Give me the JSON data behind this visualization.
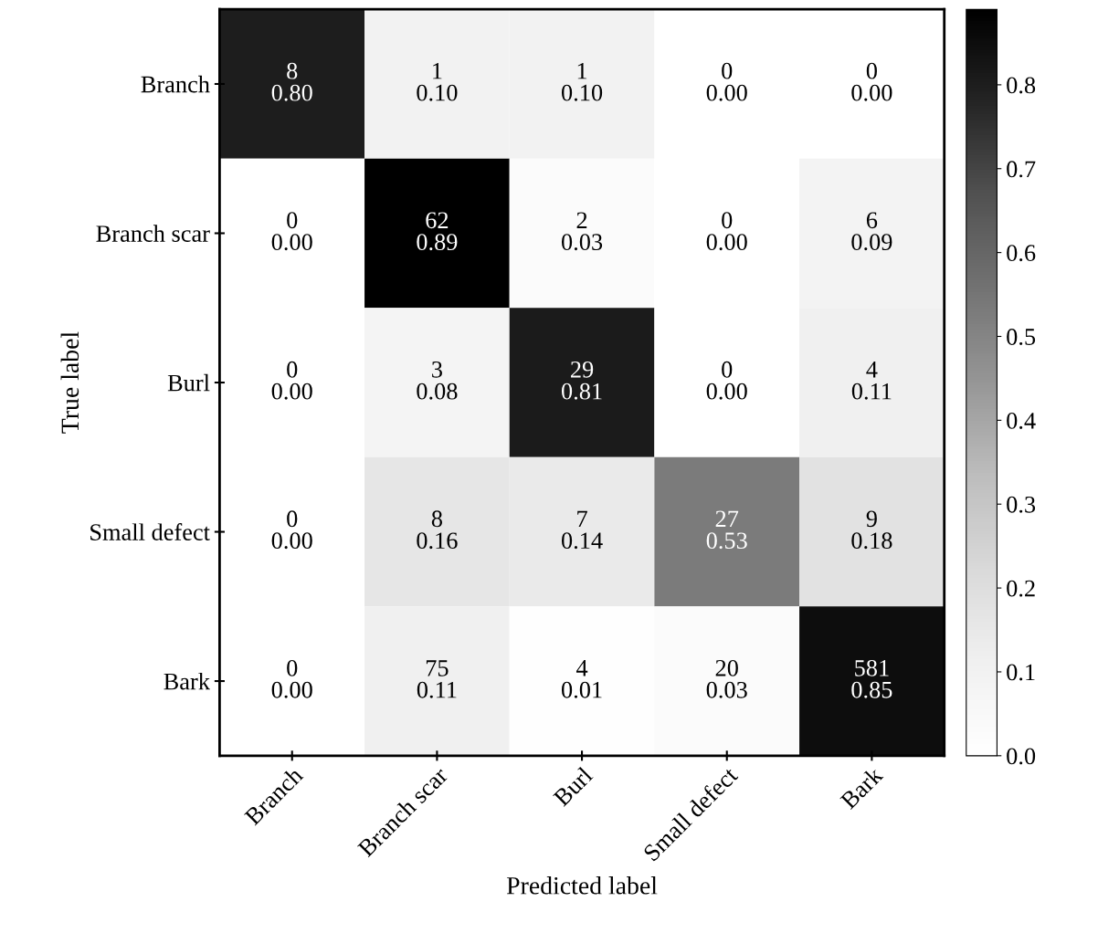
{
  "chart_data": {
    "type": "heatmap",
    "xlabel": "Predicted label",
    "ylabel": "True label",
    "categories": [
      "Branch",
      "Branch scar",
      "Burl",
      "Small defect",
      "Bark"
    ],
    "y_categories": [
      "Branch",
      "Branch scar",
      "Burl",
      "Small defect",
      "Bark"
    ],
    "cells": [
      [
        0.8,
        0.1,
        0.1,
        0.0,
        0.0
      ],
      [
        0.0,
        0.89,
        0.03,
        0.0,
        0.09
      ],
      [
        0.0,
        0.08,
        0.81,
        0.0,
        0.11
      ],
      [
        0.0,
        0.16,
        0.14,
        0.53,
        0.18
      ],
      [
        0.0,
        0.11,
        0.01,
        0.03,
        0.85
      ]
    ],
    "cell_labels": [
      [
        "8\n0.80",
        "1\n0.10",
        "1\n0.10",
        "0\n0.00",
        "0\n0.00"
      ],
      [
        "0\n0.00",
        "62\n0.89",
        "2\n0.03",
        "0\n0.00",
        "6\n0.09"
      ],
      [
        "0\n0.00",
        "3\n0.08",
        "29\n0.81",
        "0\n0.00",
        "4\n0.11"
      ],
      [
        "0\n0.00",
        "8\n0.16",
        "7\n0.14",
        "27\n0.53",
        "9\n0.18"
      ],
      [
        "0\n0.00",
        "75\n0.11",
        "4\n0.01",
        "20\n0.03",
        "581\n0.85"
      ]
    ],
    "clim": [
      0,
      0.89
    ],
    "cticks": [
      {
        "value": 0,
        "label": "0.0"
      },
      0.1,
      0.2,
      0.3,
      0.4,
      0.5,
      0.6,
      0.7,
      0.8
    ]
  }
}
